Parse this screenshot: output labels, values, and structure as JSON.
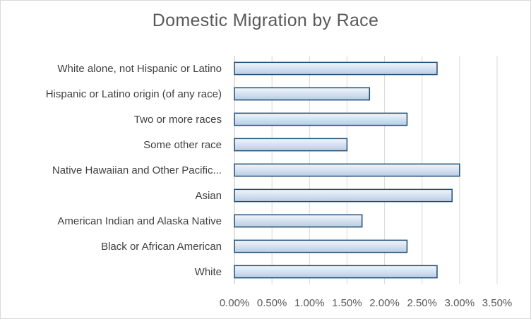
{
  "chart_data": {
    "type": "bar",
    "orientation": "horizontal",
    "title": "Domestic Migration by Race",
    "xlabel": "",
    "ylabel": "",
    "categories": [
      "White alone, not Hispanic or Latino",
      "Hispanic or Latino origin (of any race)",
      "Two or more races",
      "Some other race",
      "Native Hawaiian and Other Pacific...",
      "Asian",
      "American Indian and Alaska Native",
      "Black or African American",
      "White"
    ],
    "values": [
      0.027,
      0.018,
      0.023,
      0.015,
      0.03,
      0.029,
      0.017,
      0.023,
      0.027
    ],
    "xlim": [
      0,
      0.035
    ],
    "x_ticks": [
      "0.00%",
      "0.50%",
      "1.00%",
      "1.50%",
      "2.00%",
      "2.50%",
      "3.00%",
      "3.50%"
    ],
    "grid": "vertical",
    "legend": "none",
    "bar_fill_top": "#f2f6fb",
    "bar_fill_bottom": "#b8cce4",
    "bar_stroke": "#1f4e79"
  }
}
